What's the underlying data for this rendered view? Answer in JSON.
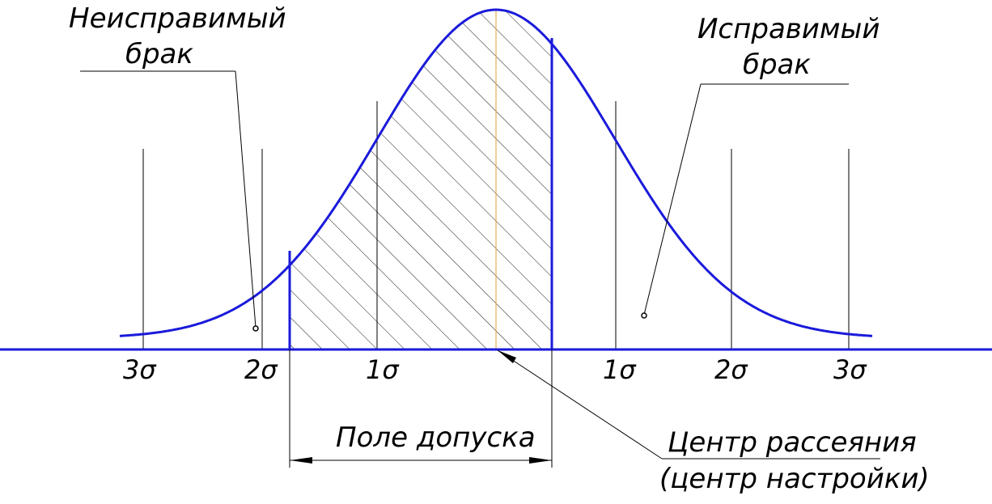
{
  "diagram": {
    "labels": {
      "irreparable_line1": "Неисправимый",
      "irreparable_line2": "брак",
      "reparable_line1": "Исправимый",
      "reparable_line2": "брак",
      "tolerance_field": "Поле допуска",
      "center_line1": "Центр рассеяния",
      "center_line2": "(центр настройки)"
    },
    "sigma_marks": {
      "left": [
        "3σ",
        "2σ",
        "1σ"
      ],
      "right": [
        "1σ",
        "2σ",
        "3σ"
      ]
    },
    "colors": {
      "curve": "#1a1adb",
      "axis": "#1a1adb",
      "tolerance_bounds": "#1a1adb",
      "center_line": "#e0a030",
      "hatch": "#000000",
      "leaders": "#000000"
    }
  }
}
